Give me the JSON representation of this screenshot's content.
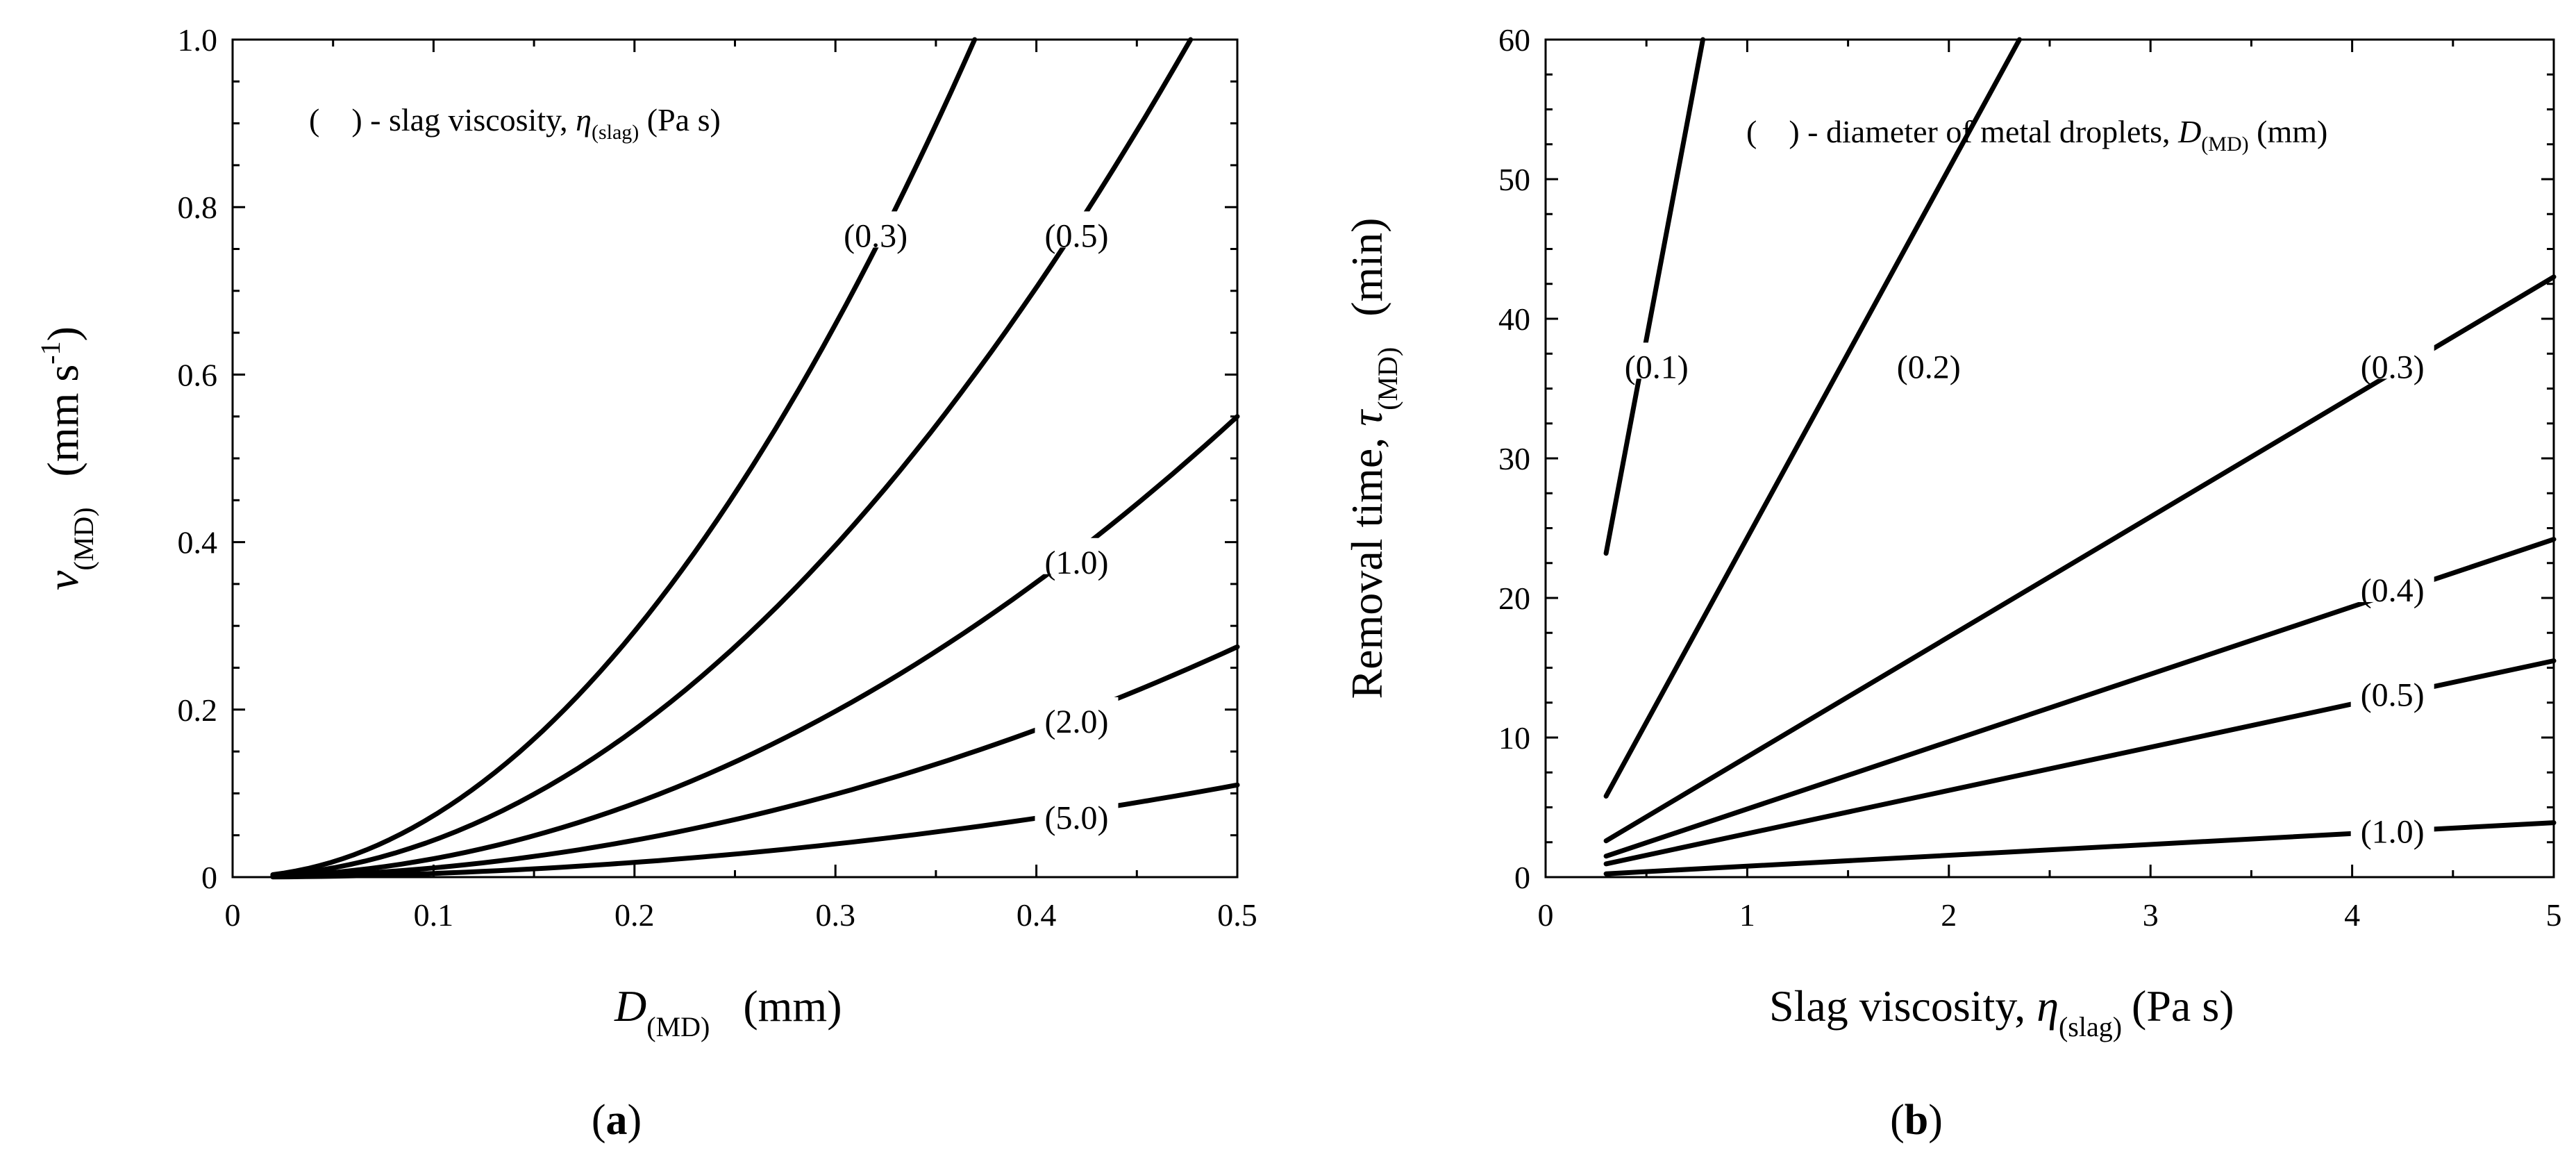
{
  "chart_data": [
    {
      "type": "line",
      "panel_label": "a",
      "xlabel": "D",
      "xlabel_sub": "(MD)",
      "xlabel_unit": "(mm)",
      "ylabel": "v",
      "ylabel_sub": "(MD)",
      "ylabel_unit_open": "(mm s",
      "ylabel_unit_sup": "-1",
      "ylabel_unit_close": ")",
      "xlim": [
        0,
        0.5
      ],
      "ylim": [
        0,
        1.0
      ],
      "xticks": [
        0,
        0.1,
        0.2,
        0.3,
        0.4,
        0.5
      ],
      "xtick_labels": [
        "0",
        "0.1",
        "0.2",
        "0.3",
        "0.4",
        "0.5"
      ],
      "yticks": [
        0,
        0.2,
        0.4,
        0.6,
        0.8,
        1.0
      ],
      "ytick_labels": [
        "0",
        "0.2",
        "0.4",
        "0.6",
        "0.8",
        "1.0"
      ],
      "legend": {
        "prefix": "(    ) - slag viscosity, ",
        "symbol": "η",
        "symbol_sub": "(slag)",
        "suffix": " (Pa s)"
      },
      "series": [
        {
          "name": "(0.3)",
          "param": 0.3,
          "label_at": [
            0.32,
            0.765
          ]
        },
        {
          "name": "(0.5)",
          "param": 0.5,
          "label_at": [
            0.42,
            0.765
          ]
        },
        {
          "name": "(1.0)",
          "param": 1.0,
          "label_at": [
            0.42,
            0.375
          ]
        },
        {
          "name": "(2.0)",
          "param": 2.0,
          "label_at": [
            0.42,
            0.185
          ]
        },
        {
          "name": "(5.0)",
          "param": 5.0,
          "label_at": [
            0.42,
            0.07
          ]
        }
      ]
    },
    {
      "type": "line",
      "panel_label": "b",
      "xlabel": "Slag viscosity, ",
      "xlabel_symbol": "η",
      "xlabel_sub": "(slag)",
      "xlabel_unit": "(Pa s)",
      "ylabel": "Removal time, ",
      "ylabel_symbol": "τ",
      "ylabel_sub": "(MD)",
      "ylabel_unit": "(min)",
      "xlim": [
        0,
        5
      ],
      "ylim": [
        0,
        60
      ],
      "xticks": [
        0,
        1,
        2,
        3,
        4,
        5
      ],
      "xtick_labels": [
        "0",
        "1",
        "2",
        "3",
        "4",
        "5"
      ],
      "yticks": [
        0,
        10,
        20,
        30,
        40,
        50,
        60
      ],
      "ytick_labels": [
        "0",
        "10",
        "20",
        "30",
        "40",
        "50",
        "60"
      ],
      "legend": {
        "prefix": "(    ) - diameter of metal droplets, ",
        "symbol": "D",
        "symbol_sub": "(MD)",
        "suffix": " (mm)"
      },
      "series": [
        {
          "name": "(0.1)",
          "x": [
            0.3,
            0.78
          ],
          "y": [
            23.2,
            60.0
          ],
          "label_at": [
            0.55,
            36.5
          ]
        },
        {
          "name": "(0.2)",
          "x": [
            0.3,
            2.35
          ],
          "y": [
            5.8,
            60.0
          ],
          "label_at": [
            1.9,
            36.5
          ]
        },
        {
          "name": "(0.3)",
          "x": [
            0.3,
            5.0
          ],
          "y": [
            2.6,
            43.0
          ],
          "label_at": [
            4.2,
            36.5
          ]
        },
        {
          "name": "(0.4)",
          "x": [
            0.3,
            5.0
          ],
          "y": [
            1.5,
            24.2
          ],
          "label_at": [
            4.2,
            20.5
          ]
        },
        {
          "name": "(0.5)",
          "x": [
            0.3,
            5.0
          ],
          "y": [
            0.95,
            15.5
          ],
          "label_at": [
            4.2,
            13.0
          ]
        },
        {
          "name": "(1.0)",
          "x": [
            0.3,
            5.0
          ],
          "y": [
            0.24,
            3.9
          ],
          "label_at": [
            4.2,
            3.2
          ]
        }
      ]
    }
  ],
  "captions": {
    "a": {
      "open": "(",
      "letter": "a",
      "close": ")"
    },
    "b": {
      "open": "(",
      "letter": "b",
      "close": ")"
    }
  }
}
